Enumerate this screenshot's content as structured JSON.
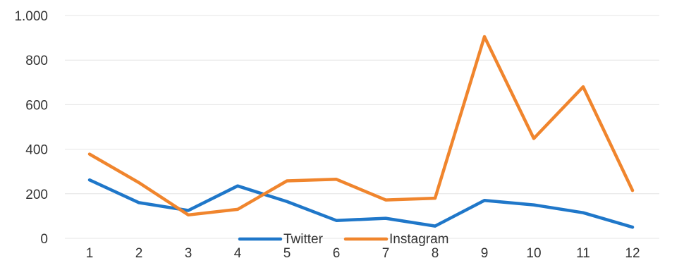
{
  "chart_data": {
    "type": "line",
    "title": "",
    "xlabel": "",
    "ylabel": "",
    "categories": [
      "1",
      "2",
      "3",
      "4",
      "5",
      "6",
      "7",
      "8",
      "9",
      "10",
      "11",
      "12"
    ],
    "ylim": [
      0,
      1000
    ],
    "yticks": [
      0,
      200,
      400,
      600,
      800,
      1000
    ],
    "ytick_labels": [
      "0",
      "200",
      "400",
      "600",
      "800",
      "1.000"
    ],
    "grid": true,
    "legend_position": "bottom",
    "series": [
      {
        "name": "Twitter",
        "color": "#1f77c9",
        "values": [
          262,
          160,
          125,
          235,
          165,
          80,
          90,
          55,
          170,
          150,
          115,
          50
        ]
      },
      {
        "name": "Instagram",
        "color": "#f0852d",
        "values": [
          378,
          250,
          105,
          130,
          258,
          265,
          172,
          180,
          905,
          448,
          680,
          215
        ]
      }
    ]
  }
}
